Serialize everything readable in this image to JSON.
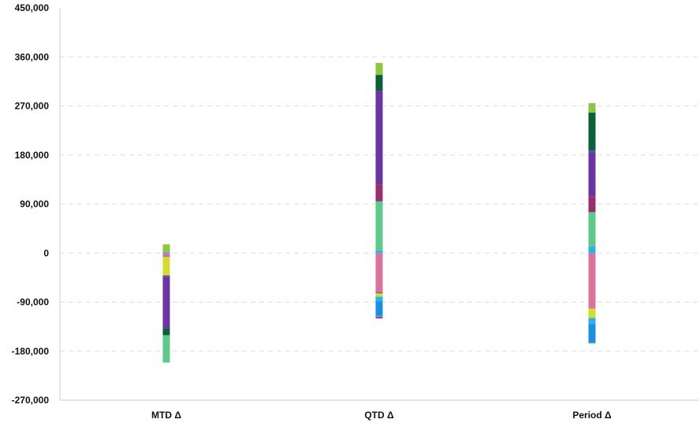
{
  "chart_data": {
    "type": "bar",
    "stacked": true,
    "categories": [
      "MTD Δ",
      "QTD Δ",
      "Period Δ"
    ],
    "y_ticks": [
      "450,000",
      "360,000",
      "270,000",
      "180,000",
      "90,000",
      "0",
      "-90,000",
      "-180,000",
      "-270,000"
    ],
    "ylim": [
      -270000,
      450000
    ],
    "grid": true,
    "colors": {
      "pink": "#d9739c",
      "yellow_green": "#d4dc2e",
      "light_blue": "#26b5e6",
      "blue": "#1e8fdc",
      "teal_light": "#a4d6c8",
      "mint": "#5ec98c",
      "magenta": "#9a2d6e",
      "purple": "#6b35a0",
      "blue_violet": "#4a56b8",
      "dark_green": "#0e5e3b",
      "lime": "#8ec544"
    },
    "series": [
      {
        "color": "#d9739c",
        "values": [
          -6000,
          -72000,
          -102000
        ]
      },
      {
        "color": "#8f4fa3",
        "values": [
          -1000,
          -2000,
          0
        ]
      },
      {
        "color": "#d4dc2e",
        "values": [
          -33000,
          -6000,
          -17000
        ]
      },
      {
        "color": "#26b5e6",
        "values": [
          0,
          -8000,
          -11000
        ]
      },
      {
        "color": "#1e8fdc",
        "values": [
          0,
          -28000,
          -35000
        ]
      },
      {
        "color": "#a4d6c8",
        "values": [
          -1000,
          -1000,
          -2000
        ]
      },
      {
        "color": "#7a3a8c",
        "values": [
          -3000,
          -3000,
          0
        ]
      },
      {
        "color": "#6b35a0",
        "values": [
          -94000,
          0,
          0
        ]
      },
      {
        "color": "#0e5e3b",
        "values": [
          -13000,
          0,
          0
        ]
      },
      {
        "color": "#5ec98c",
        "values": [
          -50000,
          0,
          0
        ]
      },
      {
        "color": "#26b5e6",
        "values": [
          2000,
          5000,
          12000
        ]
      },
      {
        "color": "#5ec98c",
        "values": [
          0,
          90000,
          63000
        ]
      },
      {
        "color": "#9a2d6e",
        "values": [
          0,
          30000,
          29000
        ]
      },
      {
        "color": "#6b35a0",
        "values": [
          0,
          172000,
          80000
        ]
      },
      {
        "color": "#4a56b8",
        "values": [
          0,
          0,
          4000
        ]
      },
      {
        "color": "#0e5e3b",
        "values": [
          0,
          30000,
          70000
        ]
      },
      {
        "color": "#8ec544",
        "values": [
          14000,
          22000,
          17000
        ]
      }
    ]
  }
}
